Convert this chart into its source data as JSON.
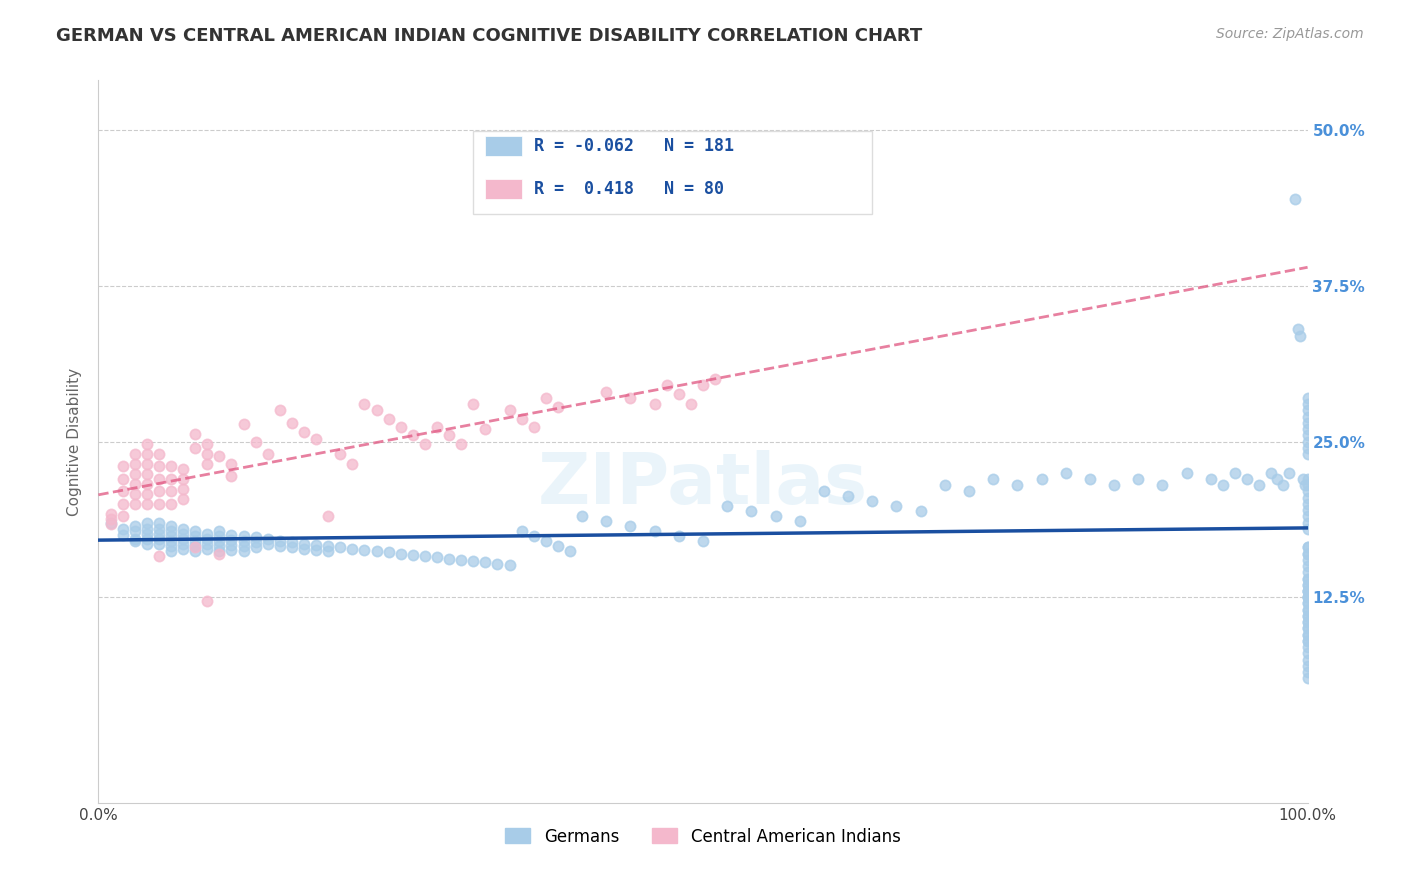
{
  "title": "GERMAN VS CENTRAL AMERICAN INDIAN COGNITIVE DISABILITY CORRELATION CHART",
  "source": "Source: ZipAtlas.com",
  "ylabel": "Cognitive Disability",
  "xlim": [
    0.0,
    1.0
  ],
  "ylim": [
    -0.04,
    0.54
  ],
  "ytick_positions": [
    0.125,
    0.25,
    0.375,
    0.5
  ],
  "ytick_labels": [
    "12.5%",
    "25.0%",
    "37.5%",
    "50.0%"
  ],
  "german_color": "#a8cce8",
  "german_color_line": "#1a4fa0",
  "central_american_color": "#f4b8cc",
  "central_american_color_line": "#e05580",
  "R_german": -0.062,
  "N_german": 181,
  "R_central": 0.418,
  "N_central": 80,
  "legend_label_german": "Germans",
  "legend_label_central": "Central American Indians",
  "background_color": "#ffffff",
  "grid_color": "#cccccc",
  "title_fontsize": 13,
  "axis_label_fontsize": 11,
  "tick_fontsize": 11,
  "legend_fontsize": 12,
  "german_scatter_x": [
    0.01,
    0.02,
    0.02,
    0.03,
    0.03,
    0.03,
    0.03,
    0.04,
    0.04,
    0.04,
    0.04,
    0.04,
    0.05,
    0.05,
    0.05,
    0.05,
    0.05,
    0.06,
    0.06,
    0.06,
    0.06,
    0.06,
    0.06,
    0.07,
    0.07,
    0.07,
    0.07,
    0.07,
    0.08,
    0.08,
    0.08,
    0.08,
    0.08,
    0.09,
    0.09,
    0.09,
    0.09,
    0.1,
    0.1,
    0.1,
    0.1,
    0.1,
    0.11,
    0.11,
    0.11,
    0.11,
    0.12,
    0.12,
    0.12,
    0.12,
    0.13,
    0.13,
    0.13,
    0.14,
    0.14,
    0.15,
    0.15,
    0.16,
    0.16,
    0.17,
    0.17,
    0.18,
    0.18,
    0.19,
    0.19,
    0.2,
    0.21,
    0.22,
    0.23,
    0.24,
    0.25,
    0.26,
    0.27,
    0.28,
    0.29,
    0.3,
    0.31,
    0.32,
    0.33,
    0.34,
    0.35,
    0.36,
    0.37,
    0.38,
    0.39,
    0.4,
    0.42,
    0.44,
    0.46,
    0.48,
    0.5,
    0.52,
    0.54,
    0.56,
    0.58,
    0.6,
    0.62,
    0.64,
    0.66,
    0.68,
    0.7,
    0.72,
    0.74,
    0.76,
    0.78,
    0.8,
    0.82,
    0.84,
    0.86,
    0.88,
    0.9,
    0.92,
    0.93,
    0.94,
    0.95,
    0.96,
    0.97,
    0.975,
    0.98,
    0.985,
    0.99,
    0.992,
    0.994,
    0.996,
    0.998,
    1.0,
    1.0,
    1.0,
    1.0,
    1.0,
    1.0,
    1.0,
    1.0,
    1.0,
    1.0,
    1.0,
    1.0,
    1.0,
    1.0,
    1.0,
    1.0,
    1.0,
    1.0,
    1.0,
    1.0,
    1.0,
    1.0,
    1.0,
    1.0,
    1.0,
    1.0,
    1.0,
    1.0,
    1.0,
    1.0,
    1.0,
    1.0,
    1.0,
    1.0,
    1.0,
    1.0,
    1.0,
    1.0,
    1.0,
    1.0,
    1.0,
    1.0,
    1.0,
    1.0,
    1.0,
    1.0,
    1.0,
    1.0,
    1.0,
    1.0,
    1.0,
    1.0,
    1.0,
    1.0,
    1.0,
    1.0
  ],
  "german_scatter_y": [
    0.185,
    0.18,
    0.175,
    0.182,
    0.178,
    0.172,
    0.17,
    0.185,
    0.18,
    0.176,
    0.172,
    0.168,
    0.185,
    0.18,
    0.176,
    0.172,
    0.168,
    0.182,
    0.178,
    0.174,
    0.17,
    0.166,
    0.162,
    0.18,
    0.176,
    0.172,
    0.168,
    0.164,
    0.178,
    0.174,
    0.17,
    0.166,
    0.162,
    0.176,
    0.172,
    0.168,
    0.164,
    0.178,
    0.174,
    0.17,
    0.166,
    0.162,
    0.175,
    0.171,
    0.167,
    0.163,
    0.174,
    0.17,
    0.166,
    0.162,
    0.173,
    0.169,
    0.165,
    0.172,
    0.168,
    0.17,
    0.166,
    0.169,
    0.165,
    0.168,
    0.164,
    0.167,
    0.163,
    0.166,
    0.162,
    0.165,
    0.164,
    0.163,
    0.162,
    0.161,
    0.16,
    0.159,
    0.158,
    0.157,
    0.156,
    0.155,
    0.154,
    0.153,
    0.152,
    0.151,
    0.178,
    0.174,
    0.17,
    0.166,
    0.162,
    0.19,
    0.186,
    0.182,
    0.178,
    0.174,
    0.17,
    0.198,
    0.194,
    0.19,
    0.186,
    0.21,
    0.206,
    0.202,
    0.198,
    0.194,
    0.215,
    0.21,
    0.22,
    0.215,
    0.22,
    0.225,
    0.22,
    0.215,
    0.22,
    0.215,
    0.225,
    0.22,
    0.215,
    0.225,
    0.22,
    0.215,
    0.225,
    0.22,
    0.215,
    0.225,
    0.445,
    0.34,
    0.335,
    0.22,
    0.215,
    0.285,
    0.28,
    0.275,
    0.27,
    0.265,
    0.26,
    0.255,
    0.25,
    0.245,
    0.24,
    0.165,
    0.16,
    0.155,
    0.15,
    0.145,
    0.14,
    0.135,
    0.13,
    0.125,
    0.22,
    0.215,
    0.21,
    0.205,
    0.2,
    0.195,
    0.19,
    0.185,
    0.18,
    0.165,
    0.16,
    0.14,
    0.135,
    0.13,
    0.125,
    0.12,
    0.115,
    0.11,
    0.105,
    0.1,
    0.095,
    0.09,
    0.13,
    0.125,
    0.12,
    0.115,
    0.11,
    0.105,
    0.1,
    0.095,
    0.09,
    0.085,
    0.08,
    0.075,
    0.07,
    0.065,
    0.06
  ],
  "central_scatter_x": [
    0.01,
    0.01,
    0.01,
    0.02,
    0.02,
    0.02,
    0.02,
    0.02,
    0.03,
    0.03,
    0.03,
    0.03,
    0.03,
    0.03,
    0.04,
    0.04,
    0.04,
    0.04,
    0.04,
    0.04,
    0.04,
    0.05,
    0.05,
    0.05,
    0.05,
    0.05,
    0.05,
    0.06,
    0.06,
    0.06,
    0.06,
    0.07,
    0.07,
    0.07,
    0.07,
    0.08,
    0.08,
    0.08,
    0.09,
    0.09,
    0.09,
    0.09,
    0.1,
    0.1,
    0.11,
    0.11,
    0.12,
    0.13,
    0.14,
    0.15,
    0.16,
    0.17,
    0.18,
    0.19,
    0.2,
    0.21,
    0.22,
    0.23,
    0.24,
    0.25,
    0.26,
    0.27,
    0.28,
    0.29,
    0.3,
    0.31,
    0.32,
    0.34,
    0.35,
    0.36,
    0.37,
    0.38,
    0.42,
    0.44,
    0.46,
    0.47,
    0.48,
    0.49,
    0.5,
    0.51
  ],
  "central_scatter_y": [
    0.192,
    0.188,
    0.184,
    0.23,
    0.22,
    0.21,
    0.2,
    0.19,
    0.24,
    0.232,
    0.224,
    0.216,
    0.208,
    0.2,
    0.248,
    0.24,
    0.232,
    0.224,
    0.216,
    0.208,
    0.2,
    0.24,
    0.23,
    0.22,
    0.21,
    0.2,
    0.158,
    0.23,
    0.22,
    0.21,
    0.2,
    0.228,
    0.22,
    0.212,
    0.204,
    0.256,
    0.245,
    0.165,
    0.248,
    0.24,
    0.232,
    0.122,
    0.238,
    0.16,
    0.232,
    0.222,
    0.264,
    0.25,
    0.24,
    0.275,
    0.265,
    0.258,
    0.252,
    0.19,
    0.24,
    0.232,
    0.28,
    0.275,
    0.268,
    0.262,
    0.255,
    0.248,
    0.262,
    0.255,
    0.248,
    0.28,
    0.26,
    0.275,
    0.268,
    0.262,
    0.285,
    0.278,
    0.29,
    0.285,
    0.28,
    0.295,
    0.288,
    0.28,
    0.295,
    0.3
  ]
}
